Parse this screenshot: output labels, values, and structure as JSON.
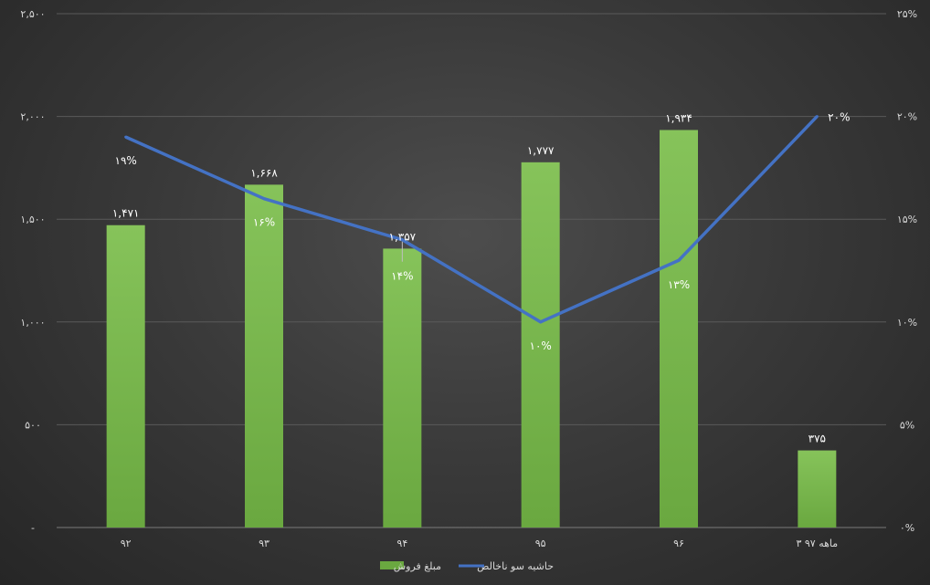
{
  "chart_data": {
    "type": "bar",
    "categories": [
      "۹۲",
      "۹۳",
      "۹۴",
      "۹۵",
      "۹۶",
      "۳ ماهه ۹۷"
    ],
    "series": [
      {
        "name": "مبلغ فروش",
        "type": "bar",
        "axis": "left",
        "values": [
          1471,
          1668,
          1357,
          1777,
          1934,
          375
        ],
        "labels": [
          "۱,۴۷۱",
          "۱,۶۶۸",
          "۱,۳۵۷",
          "۱,۷۷۷",
          "۱,۹۳۴",
          "۳۷۵"
        ]
      },
      {
        "name": "حاشیه سو ناخالص",
        "type": "line",
        "axis": "right",
        "values": [
          19,
          16,
          14,
          10,
          13,
          20
        ],
        "labels": [
          "۱۹%",
          "۱۶%",
          "۱۴%",
          "۱۰%",
          "۱۳%",
          "۲۰%"
        ]
      }
    ],
    "ylim": [
      0,
      2500
    ],
    "y2lim": [
      0,
      25
    ],
    "yticks": [
      "-",
      "۵۰۰",
      "۱,۰۰۰",
      "۱,۵۰۰",
      "۲,۰۰۰",
      "۲,۵۰۰"
    ],
    "y2ticks": [
      "۰%",
      "۵%",
      "۱۰%",
      "۱۵%",
      "۲۰%",
      "۲۵%"
    ],
    "grid": true,
    "legend_position": "bottom",
    "colors": {
      "bar": "#6aa840",
      "bar_light": "#86c35a",
      "line": "#4472c4",
      "grid": "#5a5a5a",
      "text": "#d9d9d9"
    }
  }
}
